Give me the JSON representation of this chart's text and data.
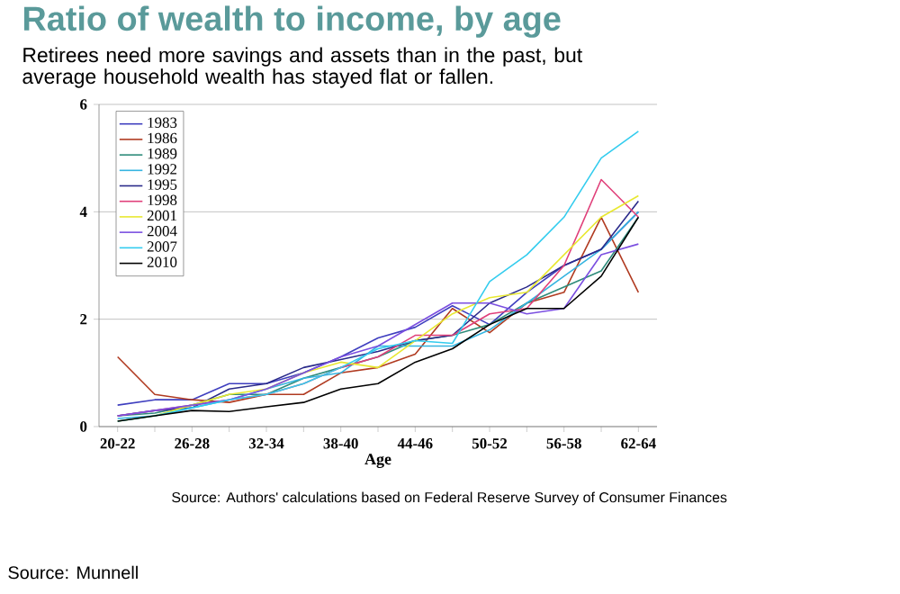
{
  "chart_data": {
    "type": "line",
    "title": "Ratio of wealth to income, by age",
    "subtitle": "Retirees need more savings and assets than in the past, but average household wealth has stayed flat or fallen.",
    "xlabel": "Age",
    "categories": [
      "20-22",
      null,
      "26-28",
      null,
      "32-34",
      null,
      "38-40",
      null,
      "44-46",
      null,
      "50-52",
      null,
      "56-58",
      null,
      "62-64"
    ],
    "series": [
      {
        "name": "1983",
        "color": "#3f3fbf",
        "values": [
          0.4,
          0.5,
          0.5,
          0.8,
          0.8,
          1.0,
          1.3,
          1.65,
          1.85,
          2.25,
          1.9,
          2.5,
          3.0,
          3.3,
          4.0
        ]
      },
      {
        "name": "1986",
        "color": "#b03a20",
        "values": [
          1.3,
          0.6,
          0.5,
          0.45,
          0.6,
          0.6,
          1.0,
          1.1,
          1.35,
          2.2,
          1.75,
          2.3,
          2.5,
          3.9,
          2.5
        ]
      },
      {
        "name": "1989",
        "color": "#2e8b7a",
        "values": [
          0.2,
          0.25,
          0.4,
          0.6,
          0.6,
          0.9,
          1.1,
          1.3,
          1.6,
          1.7,
          1.9,
          2.3,
          2.6,
          2.9,
          3.9
        ]
      },
      {
        "name": "1992",
        "color": "#35b4e0",
        "values": [
          0.15,
          0.2,
          0.35,
          0.5,
          0.7,
          0.9,
          1.0,
          1.5,
          1.5,
          1.5,
          1.8,
          2.3,
          2.8,
          3.3,
          4.0
        ]
      },
      {
        "name": "1995",
        "color": "#2a2a8a",
        "values": [
          0.2,
          0.3,
          0.35,
          0.7,
          0.8,
          1.1,
          1.25,
          1.4,
          1.6,
          1.7,
          2.3,
          2.6,
          3.0,
          3.3,
          4.2
        ]
      },
      {
        "name": "1998",
        "color": "#e0407a",
        "values": [
          0.2,
          0.3,
          0.4,
          0.5,
          0.6,
          0.8,
          1.1,
          1.3,
          1.7,
          1.7,
          2.1,
          2.2,
          3.0,
          4.6,
          3.9
        ]
      },
      {
        "name": "2001",
        "color": "#e8e830",
        "values": [
          0.1,
          0.2,
          0.4,
          0.6,
          0.7,
          1.0,
          1.2,
          1.1,
          1.6,
          2.1,
          2.4,
          2.5,
          3.2,
          3.9,
          4.3
        ]
      },
      {
        "name": "2004",
        "color": "#7b4fe0",
        "values": [
          0.2,
          0.3,
          0.4,
          0.5,
          0.7,
          1.0,
          1.3,
          1.5,
          1.9,
          2.3,
          2.3,
          2.1,
          2.2,
          3.2,
          3.4
        ]
      },
      {
        "name": "2007",
        "color": "#33ccee",
        "values": [
          0.1,
          0.2,
          0.35,
          0.5,
          0.6,
          0.8,
          1.1,
          1.45,
          1.6,
          1.55,
          2.7,
          3.2,
          3.9,
          5.0,
          5.5
        ]
      },
      {
        "name": "2010",
        "color": "#000000",
        "values": [
          0.1,
          0.2,
          0.3,
          0.28,
          0.37,
          0.45,
          0.7,
          0.8,
          1.2,
          1.45,
          1.9,
          2.2,
          2.2,
          2.8,
          3.9
        ]
      }
    ],
    "ylim": [
      0,
      6
    ],
    "yticks": [
      0,
      2,
      4,
      6
    ],
    "grid": "y",
    "legend": "top left",
    "marker": "none",
    "line_style": "solid",
    "annotations": [
      "Source: Authors' calculations based on Federal Reserve Survey of Consumer Finances",
      "Source: Munnell"
    ]
  }
}
